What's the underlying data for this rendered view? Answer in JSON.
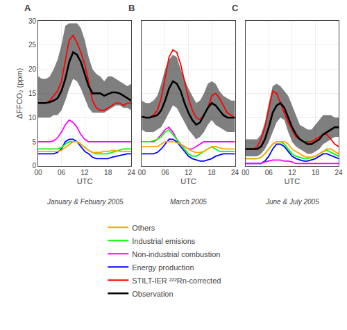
{
  "chart_data": [
    {
      "type": "line",
      "title": "January & Febuary 2005",
      "annotations": [
        "A"
      ],
      "x": [
        0,
        1,
        2,
        3,
        4,
        5,
        6,
        7,
        8,
        9,
        10,
        11,
        12,
        13,
        14,
        15,
        16,
        17,
        18,
        19,
        20,
        21,
        22,
        23,
        24
      ],
      "xlim": [
        0,
        24
      ],
      "xticks": [
        {
          "value": 0,
          "label": "00"
        },
        {
          "value": 6,
          "label": "06"
        },
        {
          "value": 12,
          "label": "12"
        },
        {
          "value": 18,
          "label": "18"
        },
        {
          "value": 24,
          "label": "24"
        }
      ],
      "ylim": [
        0,
        30
      ],
      "yticks": [
        0,
        5,
        10,
        15,
        20,
        25,
        30
      ],
      "xlabel": "UTC",
      "ylabel": "ΔFFCO₂ (ppm)",
      "grid": true,
      "legend": "bottom",
      "series": [
        {
          "name": "Observation",
          "color": "black",
          "values": [
            13.0,
            13.0,
            13.0,
            13.2,
            13.5,
            14.0,
            15.5,
            18.0,
            21.5,
            23.5,
            23.0,
            21.5,
            19.0,
            16.5,
            15.0,
            15.0,
            15.0,
            14.5,
            14.8,
            15.2,
            15.2,
            15.0,
            14.5,
            14.0,
            13.5
          ],
          "lower": [
            10.0,
            10.0,
            10.0,
            10.0,
            10.5,
            10.5,
            11.5,
            13.5,
            16.0,
            18.0,
            17.5,
            16.0,
            14.0,
            12.0,
            11.0,
            11.0,
            11.0,
            11.0,
            11.5,
            12.0,
            12.5,
            12.5,
            12.0,
            12.0,
            11.5
          ],
          "upper": [
            18.5,
            18.0,
            18.0,
            18.5,
            20.0,
            22.0,
            25.0,
            29.0,
            29.5,
            29.5,
            29.5,
            28.5,
            26.0,
            22.5,
            20.0,
            19.0,
            18.5,
            17.5,
            18.5,
            18.5,
            18.0,
            17.5,
            17.0,
            16.5,
            17.0
          ]
        },
        {
          "name": "STILT-IER ²²²Rn-corrected",
          "color": "red",
          "values": [
            13.0,
            13.0,
            13.0,
            13.5,
            14.5,
            15.5,
            17.5,
            21.5,
            26.0,
            27.0,
            25.5,
            23.5,
            21.0,
            17.5,
            13.5,
            12.0,
            11.5,
            11.5,
            12.0,
            12.5,
            13.0,
            13.0,
            12.5,
            13.0,
            13.0
          ]
        },
        {
          "name": "Energy production",
          "color": "blue",
          "values": [
            2.5,
            2.5,
            2.5,
            2.5,
            2.5,
            2.8,
            3.5,
            5.0,
            5.5,
            5.5,
            5.0,
            4.0,
            3.0,
            2.5,
            1.8,
            1.5,
            1.5,
            1.5,
            1.5,
            1.8,
            2.0,
            2.2,
            2.3,
            2.5,
            2.5
          ]
        },
        {
          "name": "Non-industrial combustion",
          "color": "magenta",
          "values": [
            5.0,
            5.0,
            5.0,
            5.0,
            5.2,
            5.8,
            7.0,
            8.5,
            9.5,
            9.0,
            8.0,
            6.5,
            5.5,
            5.0,
            5.0,
            5.0,
            5.0,
            5.0,
            5.0,
            5.0,
            5.0,
            5.0,
            5.0,
            5.0,
            5.0
          ]
        },
        {
          "name": "Industrial emisions",
          "color": "lime",
          "values": [
            3.5,
            3.5,
            3.5,
            3.5,
            3.5,
            3.5,
            3.8,
            4.5,
            5.0,
            5.0,
            5.0,
            4.5,
            3.8,
            3.2,
            2.8,
            2.5,
            2.5,
            2.5,
            2.5,
            2.8,
            3.0,
            3.2,
            3.5,
            3.5,
            3.5
          ]
        },
        {
          "name": "Others",
          "color": "orange",
          "values": [
            3.0,
            3.0,
            3.0,
            3.0,
            3.0,
            3.0,
            3.2,
            3.8,
            4.5,
            5.0,
            5.0,
            4.5,
            3.8,
            3.2,
            2.8,
            2.8,
            2.8,
            3.0,
            3.0,
            3.2,
            3.2,
            3.0,
            3.0,
            3.0,
            3.0
          ]
        }
      ]
    },
    {
      "type": "line",
      "title": "March 2005",
      "annotations": [
        "B"
      ],
      "x": [
        0,
        1,
        2,
        3,
        4,
        5,
        6,
        7,
        8,
        9,
        10,
        11,
        12,
        13,
        14,
        15,
        16,
        17,
        18,
        19,
        20,
        21,
        22,
        23,
        24
      ],
      "xlim": [
        0,
        24
      ],
      "xticks": [
        {
          "value": 0,
          "label": "00"
        },
        {
          "value": 6,
          "label": "06"
        },
        {
          "value": 12,
          "label": "12"
        },
        {
          "value": 18,
          "label": "18"
        },
        {
          "value": 24,
          "label": "24"
        }
      ],
      "ylim": [
        0,
        30
      ],
      "yticks": [
        0,
        5,
        10,
        15,
        20,
        25,
        30
      ],
      "xlabel": "UTC",
      "grid": true,
      "tick_labels": "x",
      "series": [
        {
          "name": "Observation",
          "color": "black",
          "values": [
            10.2,
            10.0,
            10.0,
            10.2,
            10.5,
            11.5,
            13.5,
            16.0,
            17.5,
            17.0,
            15.5,
            13.0,
            11.0,
            9.5,
            8.5,
            9.0,
            10.5,
            12.0,
            13.0,
            12.5,
            11.5,
            10.5,
            10.0,
            10.0,
            10.0
          ],
          "lower": [
            7.5,
            7.0,
            7.0,
            7.0,
            7.5,
            8.0,
            9.5,
            11.0,
            12.5,
            12.0,
            10.5,
            9.0,
            7.5,
            6.5,
            5.5,
            6.0,
            7.0,
            8.5,
            9.5,
            8.5,
            8.0,
            7.5,
            7.0,
            7.0,
            7.0
          ],
          "upper": [
            13.5,
            13.0,
            13.0,
            13.5,
            14.5,
            17.0,
            20.0,
            22.0,
            23.0,
            22.5,
            20.0,
            18.0,
            16.0,
            14.5,
            13.0,
            13.5,
            15.0,
            17.0,
            17.5,
            17.0,
            15.5,
            14.5,
            14.0,
            13.5,
            13.5
          ]
        },
        {
          "name": "STILT-IER ²²²Rn-corrected",
          "color": "red",
          "values": [
            10.0,
            10.0,
            10.0,
            10.5,
            11.5,
            14.0,
            18.0,
            22.5,
            24.0,
            23.5,
            21.0,
            17.5,
            14.0,
            11.5,
            10.0,
            9.5,
            10.5,
            12.0,
            14.5,
            15.0,
            14.0,
            12.5,
            11.0,
            10.5,
            10.0
          ]
        },
        {
          "name": "Energy production",
          "color": "blue",
          "values": [
            2.5,
            2.5,
            2.5,
            2.5,
            2.8,
            3.5,
            4.5,
            5.5,
            5.5,
            5.0,
            4.0,
            3.0,
            2.0,
            1.5,
            1.2,
            1.0,
            1.0,
            1.2,
            1.5,
            2.0,
            2.2,
            2.5,
            2.5,
            2.5,
            2.5
          ]
        },
        {
          "name": "Non-industrial combustion",
          "color": "magenta",
          "values": [
            5.0,
            5.0,
            5.0,
            5.0,
            5.5,
            6.5,
            7.5,
            8.0,
            7.0,
            5.5,
            4.5,
            4.0,
            3.5,
            3.5,
            4.0,
            4.5,
            5.0,
            5.0,
            5.0,
            5.0,
            5.0,
            5.0,
            5.0,
            5.0,
            5.0
          ]
        },
        {
          "name": "Industrial emisions",
          "color": "lime",
          "values": [
            5.0,
            5.0,
            5.0,
            5.2,
            5.5,
            6.0,
            7.0,
            7.5,
            6.5,
            5.5,
            4.5,
            3.5,
            2.5,
            2.0,
            2.0,
            2.5,
            3.0,
            3.5,
            4.0,
            3.5,
            3.0,
            3.0,
            3.0,
            3.0,
            3.0
          ]
        },
        {
          "name": "Others",
          "color": "orange",
          "values": [
            4.0,
            4.0,
            4.0,
            4.0,
            4.0,
            4.5,
            5.0,
            5.0,
            5.0,
            4.8,
            4.5,
            4.0,
            3.5,
            3.0,
            2.8,
            2.8,
            3.0,
            3.5,
            4.0,
            4.0,
            3.8,
            3.5,
            3.5,
            3.5,
            3.5
          ]
        }
      ]
    },
    {
      "type": "line",
      "title": "June & July 2005",
      "annotations": [
        "C"
      ],
      "x": [
        0,
        1,
        2,
        3,
        4,
        5,
        6,
        7,
        8,
        9,
        10,
        11,
        12,
        13,
        14,
        15,
        16,
        17,
        18,
        19,
        20,
        21,
        22,
        23,
        24
      ],
      "xlim": [
        0,
        24
      ],
      "xticks": [
        {
          "value": 0,
          "label": "00"
        },
        {
          "value": 6,
          "label": "06"
        },
        {
          "value": 12,
          "label": "12"
        },
        {
          "value": 18,
          "label": "18"
        },
        {
          "value": 24,
          "label": "24"
        }
      ],
      "ylim": [
        0,
        30
      ],
      "yticks": [
        0,
        5,
        10,
        15,
        20,
        25,
        30
      ],
      "xlabel": "UTC",
      "grid": true,
      "tick_labels": "x",
      "series": [
        {
          "name": "Observation",
          "color": "black",
          "values": [
            3.5,
            3.5,
            3.5,
            3.5,
            4.0,
            5.5,
            8.0,
            11.0,
            12.5,
            13.0,
            12.0,
            10.0,
            8.0,
            6.5,
            5.5,
            5.0,
            4.5,
            4.5,
            5.0,
            5.5,
            6.5,
            7.0,
            7.5,
            8.0,
            8.0
          ],
          "lower": [
            2.0,
            2.0,
            2.0,
            2.0,
            2.5,
            3.5,
            5.0,
            7.0,
            9.0,
            10.0,
            9.5,
            7.0,
            5.0,
            4.0,
            3.5,
            3.0,
            2.5,
            2.5,
            3.0,
            3.5,
            4.5,
            5.0,
            5.5,
            6.0,
            6.0
          ],
          "upper": [
            5.5,
            5.5,
            5.5,
            5.5,
            6.5,
            9.0,
            13.0,
            16.5,
            17.0,
            16.5,
            15.5,
            14.5,
            12.5,
            10.5,
            8.5,
            8.0,
            7.5,
            7.5,
            8.5,
            9.5,
            10.5,
            10.5,
            10.5,
            10.0,
            10.0
          ]
        },
        {
          "name": "STILT-IER ²²²Rn-corrected",
          "color": "red",
          "values": [
            3.5,
            3.5,
            3.5,
            4.0,
            5.5,
            8.0,
            12.0,
            15.5,
            15.0,
            13.0,
            11.0,
            9.0,
            7.5,
            6.0,
            5.5,
            5.0,
            5.0,
            5.0,
            5.5,
            6.0,
            6.5,
            6.5,
            5.5,
            4.5,
            4.0
          ]
        },
        {
          "name": "Energy production",
          "color": "blue",
          "values": [
            0.5,
            0.5,
            0.5,
            0.5,
            0.5,
            1.0,
            2.0,
            3.5,
            4.5,
            4.5,
            4.0,
            3.0,
            2.0,
            1.5,
            1.2,
            1.0,
            1.0,
            1.2,
            1.5,
            2.0,
            2.5,
            2.5,
            2.2,
            1.8,
            1.5
          ]
        },
        {
          "name": "Non-industrial combustion",
          "color": "magenta",
          "values": [
            0.5,
            0.5,
            0.5,
            0.5,
            0.5,
            0.8,
            1.0,
            1.2,
            1.2,
            1.2,
            1.0,
            1.0,
            0.8,
            0.5,
            0.5,
            0.5,
            0.5,
            0.5,
            0.5,
            0.5,
            0.5,
            0.5,
            0.5,
            0.5,
            0.5
          ]
        },
        {
          "name": "Industrial emisions",
          "color": "lime",
          "values": [
            1.5,
            1.5,
            1.5,
            1.5,
            1.8,
            2.5,
            3.5,
            4.5,
            5.0,
            5.0,
            4.5,
            3.5,
            2.5,
            2.0,
            1.8,
            1.5,
            1.5,
            1.8,
            2.0,
            2.5,
            3.0,
            3.2,
            2.8,
            2.5,
            2.0
          ]
        },
        {
          "name": "Others",
          "color": "orange",
          "values": [
            1.5,
            1.5,
            1.5,
            1.5,
            1.8,
            2.5,
            3.5,
            4.5,
            5.0,
            5.0,
            5.0,
            4.5,
            3.5,
            3.0,
            2.5,
            2.0,
            1.8,
            1.8,
            2.0,
            2.5,
            3.0,
            3.5,
            3.5,
            3.0,
            2.5
          ]
        }
      ]
    }
  ]
}
